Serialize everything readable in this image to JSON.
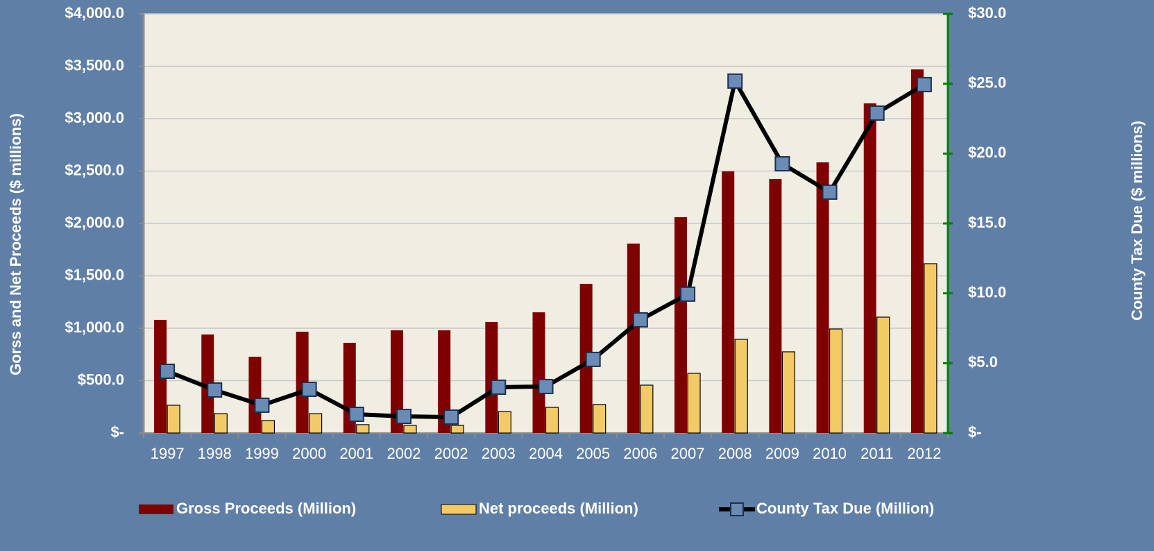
{
  "chart_data": {
    "type": "bar",
    "categories": [
      "1997",
      "1998",
      "1999",
      "2000",
      "2001",
      "2002",
      "2002",
      "2003",
      "2004",
      "2005",
      "2006",
      "2007",
      "2008",
      "2009",
      "2010",
      "2011",
      "2012"
    ],
    "y_label": "Gorss and Net Proceeds ($ millions)",
    "y2_label": "County Tax Due ($ millions)",
    "series": [
      {
        "name": "Gross Proceeds (Million)",
        "color": "#7f0000",
        "type": "bar",
        "values": [
          1080,
          940,
          728,
          967,
          861,
          980,
          980,
          1060,
          1152,
          1424,
          1808,
          2060,
          2497,
          2424,
          2583,
          3146,
          3470
        ]
      },
      {
        "name": "Net proceeds (Million)",
        "color": "#f2cb67",
        "type": "bar",
        "values": [
          265,
          185,
          119,
          185,
          80,
          73,
          73,
          205,
          245,
          272,
          457,
          570,
          894,
          775,
          993,
          1106,
          1616
        ]
      },
      {
        "name": "County Tax Due (Million)",
        "color": "#000000",
        "marker_color": "#6a8bb5",
        "type": "line",
        "axis": "y2",
        "values": [
          4.42,
          3.08,
          1.99,
          3.13,
          1.34,
          1.19,
          1.14,
          3.28,
          3.33,
          5.27,
          8.1,
          9.94,
          25.19,
          19.27,
          17.24,
          22.9,
          24.94
        ]
      }
    ],
    "ylim": [
      0,
      4000
    ],
    "yticks": [
      {
        "value": 0,
        "label": "$-"
      },
      {
        "value": 500,
        "label": "$500.0"
      },
      {
        "value": 1000,
        "label": "$1,000.0"
      },
      {
        "value": 1500,
        "label": "$1,500.0"
      },
      {
        "value": 2000,
        "label": "$2,000.0"
      },
      {
        "value": 2500,
        "label": "$2,500.0"
      },
      {
        "value": 3000,
        "label": "$3,000.0"
      },
      {
        "value": 3500,
        "label": "$3,500.0"
      },
      {
        "value": 4000,
        "label": "$4,000.0"
      }
    ],
    "y2lim": [
      0,
      30
    ],
    "y2ticks": [
      {
        "value": 0,
        "label": "$-"
      },
      {
        "value": 5,
        "label": "$5.0"
      },
      {
        "value": 10,
        "label": "$10.0"
      },
      {
        "value": 15,
        "label": "$15.0"
      },
      {
        "value": 20,
        "label": "$20.0"
      },
      {
        "value": 25,
        "label": "$25.0"
      },
      {
        "value": 30,
        "label": "$30.0"
      }
    ],
    "grid": true,
    "legend": "bottom"
  }
}
